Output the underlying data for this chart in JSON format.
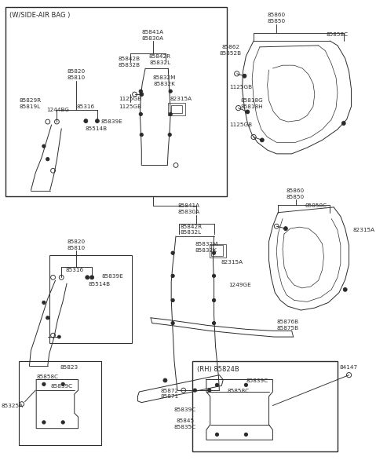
{
  "bg": "#ffffff",
  "lc": "#2a2a2a",
  "fw": 4.8,
  "fh": 6.19,
  "dpi": 100,
  "fs": 5.2,
  "fsh": 6.0
}
